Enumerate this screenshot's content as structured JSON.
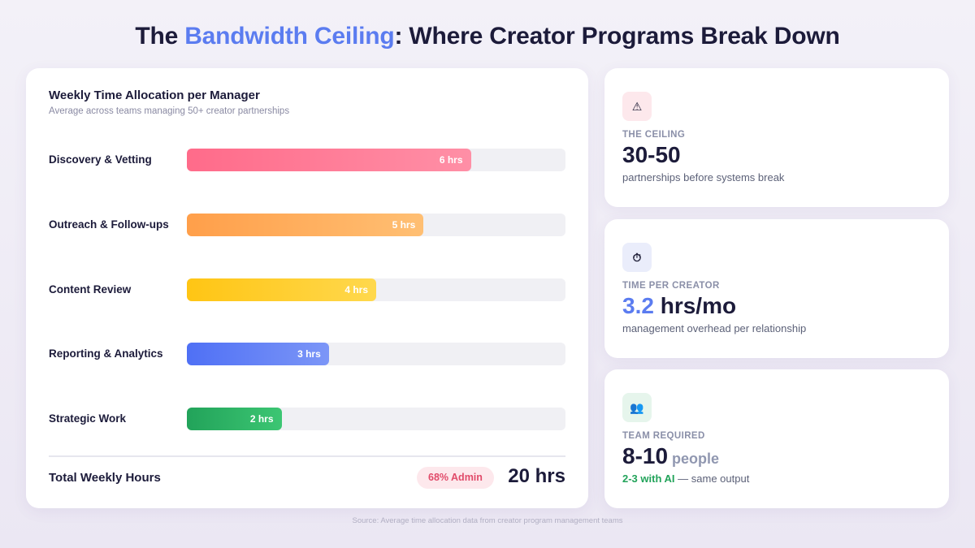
{
  "title": {
    "prefix": "The ",
    "highlight": "Bandwidth Ceiling",
    "suffix": ": Where Creator Programs Break Down"
  },
  "main_card": {
    "title": "Weekly Time Allocation per Manager",
    "subtitle": "Average across teams managing 50+ creator partnerships",
    "total_label": "Total Weekly Hours",
    "admin_badge": "68% Admin",
    "total_value": "20 hrs"
  },
  "chart_data": {
    "type": "bar",
    "orientation": "horizontal",
    "title": "Weekly Time Allocation per Manager",
    "subtitle": "Average across teams managing 50+ creator partnerships",
    "categories": [
      "Discovery & Vetting",
      "Outreach & Follow-ups",
      "Content Review",
      "Reporting & Analytics",
      "Strategic Work"
    ],
    "values": [
      6,
      5,
      4,
      3,
      2
    ],
    "value_labels": [
      "6 hrs",
      "5 hrs",
      "4 hrs",
      "3 hrs",
      "2 hrs"
    ],
    "xlim": [
      0,
      8
    ],
    "colors": [
      [
        "#ff6b8a",
        "#ff8fa6"
      ],
      [
        "#ff9f4a",
        "#ffbf73"
      ],
      [
        "#ffc514",
        "#ffd84d"
      ],
      [
        "#4f70f5",
        "#7c96f7"
      ],
      [
        "#22a35a",
        "#3cc673"
      ]
    ]
  },
  "stats": [
    {
      "icon": "warning-icon",
      "icon_glyph": "⚠",
      "icon_bg": "#fde8ec",
      "label": "THE CEILING",
      "value": "30-50",
      "desc": "partnerships before systems break"
    },
    {
      "icon": "stopwatch-icon",
      "icon_glyph": "⏱",
      "icon_bg": "#eaedfb",
      "label": "TIME PER CREATOR",
      "value_accent": "3.2",
      "value_unit": " hrs/mo",
      "desc": "management overhead per relationship"
    },
    {
      "icon": "people-icon",
      "icon_glyph": "👥",
      "icon_bg": "#e6f5ec",
      "label": "TEAM REQUIRED",
      "value": "8-10",
      "value_unit": " people",
      "desc_highlight": "2-3 with AI",
      "desc_rest": " — same output"
    }
  ],
  "source": "Source: Average time allocation data from creator program management teams"
}
